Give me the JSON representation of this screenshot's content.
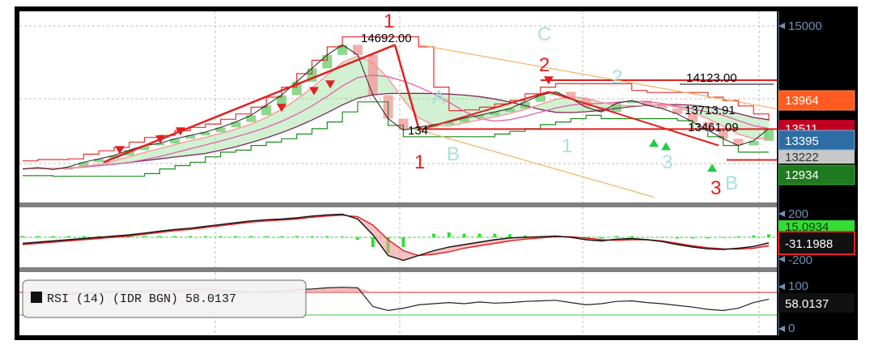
{
  "chart_data": {
    "type": "line",
    "panels": [
      {
        "name": "price",
        "yticks": [
          "15000"
        ],
        "annotations": [
          "14692.00",
          "14123.00",
          "13713.91",
          "13461.09",
          "134"
        ],
        "badges": [
          {
            "text": "13964",
            "color": "#ff5a1f"
          },
          {
            "text": "13511",
            "color": "#c00020"
          },
          {
            "text": "13395",
            "color": "#2e6da4"
          },
          {
            "text": "13222",
            "color": "#c8c8c8"
          },
          {
            "text": "12934",
            "color": "#1f7a1f"
          }
        ],
        "waves_red": [
          "1",
          "2",
          "1",
          "3"
        ],
        "waves_teal": [
          "C",
          "A",
          "B",
          "2",
          "1",
          "3",
          "B"
        ],
        "close": [
          12800,
          12820,
          12790,
          12830,
          12900,
          12950,
          13000,
          13080,
          13150,
          13180,
          13250,
          13300,
          13350,
          13420,
          13500,
          13600,
          13750,
          13900,
          14100,
          14300,
          14500,
          14650,
          14500,
          13900,
          13550,
          13380,
          13420,
          13460,
          13500,
          13560,
          13600,
          13650,
          13700,
          13800,
          13900,
          13950,
          13850,
          13720,
          13650,
          13780,
          13820,
          13750,
          13700,
          13620,
          13500,
          13380,
          13250,
          13150,
          13220,
          13400
        ],
        "resistance": [
          14123,
          13964
        ],
        "support": [
          13395,
          12934
        ]
      },
      {
        "name": "macd",
        "yticks": [
          "200",
          "-200"
        ],
        "badges": [
          {
            "text": "15.0934",
            "color": "#33dd33"
          },
          {
            "text": "-31.1988",
            "color": "#111111"
          }
        ],
        "macd": [
          -50,
          -40,
          -30,
          -20,
          -10,
          0,
          10,
          20,
          35,
          50,
          65,
          75,
          90,
          105,
          120,
          135,
          145,
          150,
          160,
          175,
          185,
          190,
          150,
          20,
          -150,
          -190,
          -150,
          -110,
          -80,
          -60,
          -40,
          -20,
          -5,
          0,
          5,
          10,
          0,
          -20,
          -30,
          -15,
          -10,
          -20,
          -35,
          -60,
          -80,
          -95,
          -100,
          -90,
          -75,
          -45
        ],
        "signal": [
          -60,
          -50,
          -40,
          -30,
          -20,
          -10,
          0,
          10,
          25,
          40,
          55,
          65,
          80,
          95,
          110,
          125,
          135,
          142,
          150,
          165,
          175,
          182,
          170,
          100,
          -20,
          -110,
          -150,
          -140,
          -120,
          -90,
          -70,
          -50,
          -30,
          -15,
          -5,
          5,
          5,
          -5,
          -20,
          -25,
          -20,
          -20,
          -30,
          -50,
          -70,
          -85,
          -95,
          -98,
          -90,
          -70
        ]
      },
      {
        "name": "rsi",
        "yticks": [
          "100",
          "0"
        ],
        "legend": "RSI (14) (IDR BGN) 58.0137",
        "value_badge": "58.0137",
        "levels": [
          70,
          30
        ],
        "rsi": [
          70,
          68,
          65,
          66,
          68,
          70,
          72,
          72,
          73,
          74,
          73,
          75,
          76,
          74,
          72,
          70,
          71,
          72,
          75,
          76,
          78,
          79,
          78,
          45,
          38,
          42,
          48,
          50,
          52,
          50,
          53,
          51,
          52,
          54,
          55,
          56,
          52,
          48,
          50,
          54,
          55,
          52,
          50,
          47,
          44,
          40,
          38,
          42,
          52,
          58
        ]
      }
    ],
    "grid": true,
    "theme": "dark-chart-on-white"
  }
}
